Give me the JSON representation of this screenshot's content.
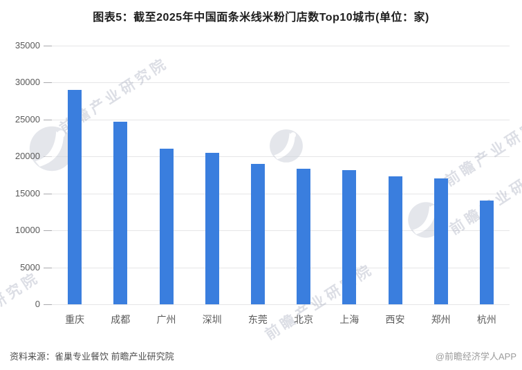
{
  "title": "图表5：截至2025年中国面条米线米粉门店数Top10城市(单位：家)",
  "chart_data": {
    "type": "bar",
    "title": "图表5：截至2025年中国面条米线米粉门店数Top10城市(单位：家)",
    "unit": "家",
    "categories": [
      "重庆",
      "成都",
      "广州",
      "深圳",
      "东莞",
      "北京",
      "上海",
      "西安",
      "郑州",
      "杭州"
    ],
    "values": [
      29000,
      24700,
      21100,
      20500,
      19000,
      18300,
      18200,
      17300,
      17000,
      14000
    ],
    "xlabel": "",
    "ylabel": "",
    "ylim": [
      0,
      35000
    ],
    "ytick_step": 5000,
    "ytick_labels": [
      "0",
      "5000",
      "10000",
      "15000",
      "20000",
      "25000",
      "30000",
      "35000"
    ],
    "grid": true,
    "legend": "none",
    "bar_color": "#3a7ede"
  },
  "footer": {
    "source": "资料来源：雀巢专业餐饮 前瞻产业研究院",
    "credit": "@前瞻经济学人APP"
  },
  "watermark": {
    "text": "前瞻产业研究院"
  },
  "colors": {
    "bar": "#3a7ede",
    "gridline": "#e5e5e7",
    "axis_label": "#595959",
    "title_text": "#1d1d1d",
    "source_text": "#4d4d4d",
    "credit_text": "#9b9b9b",
    "watermark": "#9aa1b4"
  }
}
